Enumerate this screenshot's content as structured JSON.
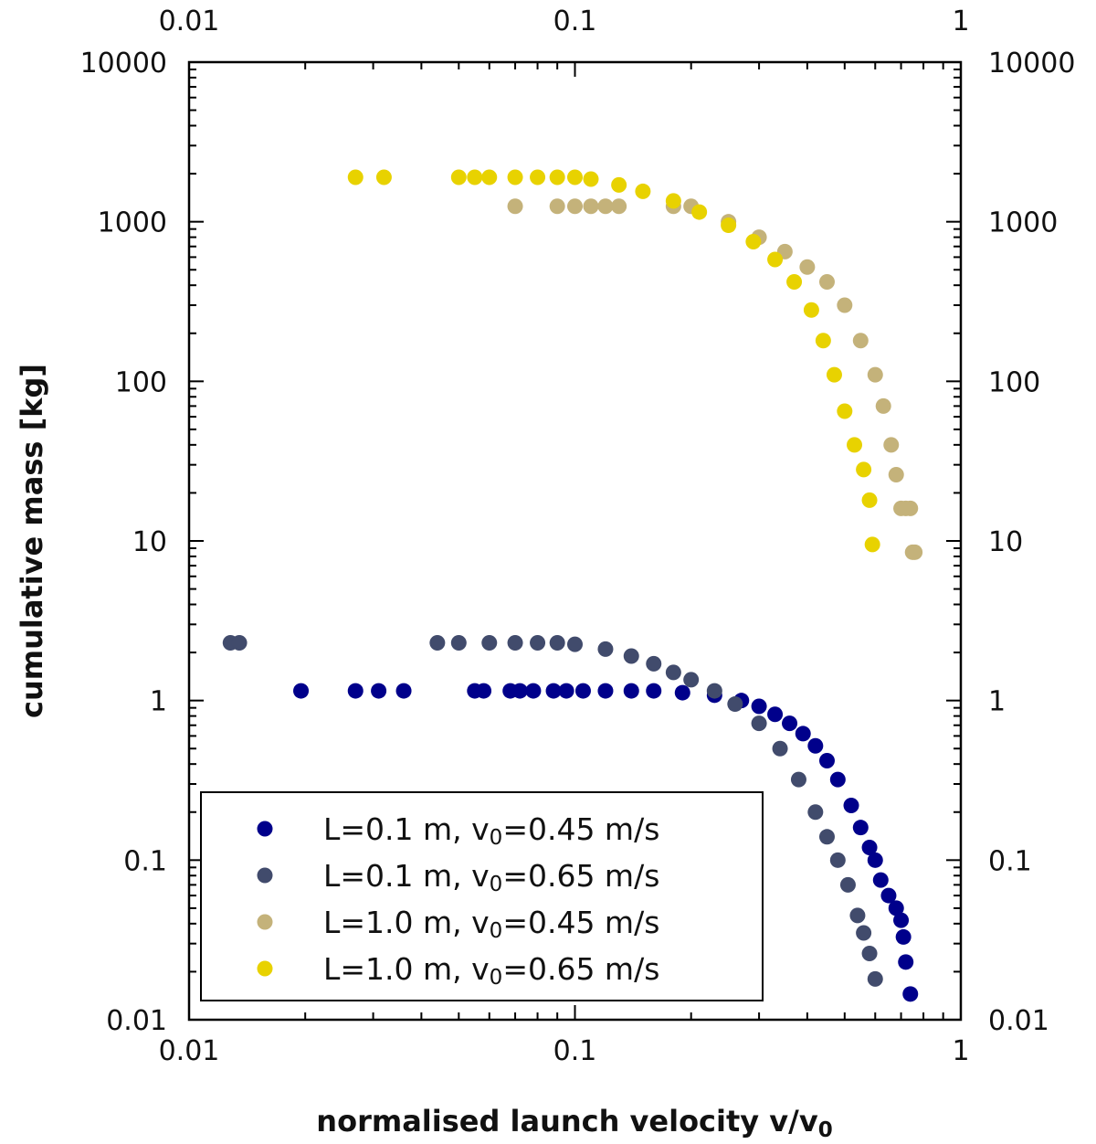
{
  "chart_data": {
    "type": "scatter",
    "title": "",
    "xlabel": "normalised launch velocity v/v",
    "xlabel_sub": "0",
    "ylabel": "cumulative mass [kg]",
    "xscale": "log",
    "yscale": "log",
    "xlim": [
      0.01,
      1
    ],
    "ylim": [
      0.01,
      10000
    ],
    "x_ticks": [
      0.01,
      0.1,
      1
    ],
    "x_tick_labels": [
      "0.01",
      "0.1",
      "1"
    ],
    "y_ticks": [
      0.01,
      0.1,
      1,
      10,
      100,
      1000,
      10000
    ],
    "y_tick_labels": [
      "0.01",
      "0.1",
      "1",
      "10",
      "100",
      "1000",
      "10000"
    ],
    "legend_position": "bottom-left",
    "series": [
      {
        "name": "L=0.1 m, v0=0.45 m/s",
        "label_parts": [
          "L=0.1 m, v",
          "0",
          "=0.45 m/s"
        ],
        "color": "#00008b",
        "points": [
          [
            0.0195,
            1.15
          ],
          [
            0.027,
            1.15
          ],
          [
            0.031,
            1.15
          ],
          [
            0.036,
            1.15
          ],
          [
            0.055,
            1.15
          ],
          [
            0.058,
            1.15
          ],
          [
            0.068,
            1.15
          ],
          [
            0.072,
            1.15
          ],
          [
            0.078,
            1.15
          ],
          [
            0.088,
            1.15
          ],
          [
            0.095,
            1.15
          ],
          [
            0.105,
            1.15
          ],
          [
            0.12,
            1.15
          ],
          [
            0.14,
            1.15
          ],
          [
            0.16,
            1.15
          ],
          [
            0.19,
            1.12
          ],
          [
            0.23,
            1.08
          ],
          [
            0.27,
            1.0
          ],
          [
            0.3,
            0.92
          ],
          [
            0.33,
            0.82
          ],
          [
            0.36,
            0.72
          ],
          [
            0.39,
            0.62
          ],
          [
            0.42,
            0.52
          ],
          [
            0.45,
            0.42
          ],
          [
            0.48,
            0.32
          ],
          [
            0.52,
            0.22
          ],
          [
            0.55,
            0.16
          ],
          [
            0.58,
            0.12
          ],
          [
            0.6,
            0.1
          ],
          [
            0.62,
            0.075
          ],
          [
            0.65,
            0.06
          ],
          [
            0.68,
            0.05
          ],
          [
            0.7,
            0.042
          ],
          [
            0.71,
            0.033
          ],
          [
            0.72,
            0.023
          ],
          [
            0.74,
            0.0145
          ]
        ]
      },
      {
        "name": "L=0.1 m, v0=0.65 m/s",
        "label_parts": [
          "L=0.1 m, v",
          "0",
          "=0.65 m/s"
        ],
        "color": "#414b6c",
        "points": [
          [
            0.0128,
            2.3
          ],
          [
            0.0135,
            2.3
          ],
          [
            0.044,
            2.3
          ],
          [
            0.05,
            2.3
          ],
          [
            0.06,
            2.3
          ],
          [
            0.07,
            2.3
          ],
          [
            0.08,
            2.3
          ],
          [
            0.09,
            2.3
          ],
          [
            0.1,
            2.25
          ],
          [
            0.12,
            2.1
          ],
          [
            0.14,
            1.9
          ],
          [
            0.16,
            1.7
          ],
          [
            0.18,
            1.5
          ],
          [
            0.2,
            1.35
          ],
          [
            0.23,
            1.15
          ],
          [
            0.26,
            0.95
          ],
          [
            0.3,
            0.72
          ],
          [
            0.34,
            0.5
          ],
          [
            0.38,
            0.32
          ],
          [
            0.42,
            0.2
          ],
          [
            0.45,
            0.14
          ],
          [
            0.48,
            0.1
          ],
          [
            0.51,
            0.07
          ],
          [
            0.54,
            0.045
          ],
          [
            0.56,
            0.035
          ],
          [
            0.58,
            0.026
          ],
          [
            0.6,
            0.018
          ]
        ]
      },
      {
        "name": "L=1.0 m, v0=0.45 m/s",
        "label_parts": [
          "L=1.0 m, v",
          "0",
          "=0.45 m/s"
        ],
        "color": "#c4b27a",
        "points": [
          [
            0.07,
            1250
          ],
          [
            0.09,
            1250
          ],
          [
            0.1,
            1250
          ],
          [
            0.11,
            1250
          ],
          [
            0.12,
            1250
          ],
          [
            0.13,
            1250
          ],
          [
            0.18,
            1250
          ],
          [
            0.2,
            1250
          ],
          [
            0.25,
            1000
          ],
          [
            0.3,
            800
          ],
          [
            0.35,
            650
          ],
          [
            0.4,
            520
          ],
          [
            0.45,
            420
          ],
          [
            0.5,
            300
          ],
          [
            0.55,
            180
          ],
          [
            0.6,
            110
          ],
          [
            0.63,
            70
          ],
          [
            0.66,
            40
          ],
          [
            0.68,
            26
          ],
          [
            0.7,
            16
          ],
          [
            0.72,
            16
          ],
          [
            0.74,
            16
          ],
          [
            0.75,
            8.5
          ],
          [
            0.76,
            8.5
          ]
        ]
      },
      {
        "name": "L=1.0 m, v0=0.65 m/s",
        "label_parts": [
          "L=1.0 m, v",
          "0",
          "=0.65 m/s"
        ],
        "color": "#e8d200",
        "points": [
          [
            0.027,
            1900
          ],
          [
            0.032,
            1900
          ],
          [
            0.05,
            1900
          ],
          [
            0.055,
            1900
          ],
          [
            0.06,
            1900
          ],
          [
            0.07,
            1900
          ],
          [
            0.08,
            1900
          ],
          [
            0.09,
            1900
          ],
          [
            0.1,
            1900
          ],
          [
            0.11,
            1850
          ],
          [
            0.13,
            1700
          ],
          [
            0.15,
            1550
          ],
          [
            0.18,
            1350
          ],
          [
            0.21,
            1150
          ],
          [
            0.25,
            950
          ],
          [
            0.29,
            750
          ],
          [
            0.33,
            580
          ],
          [
            0.37,
            420
          ],
          [
            0.41,
            280
          ],
          [
            0.44,
            180
          ],
          [
            0.47,
            110
          ],
          [
            0.5,
            65
          ],
          [
            0.53,
            40
          ],
          [
            0.56,
            28
          ],
          [
            0.58,
            18
          ],
          [
            0.59,
            9.5
          ]
        ]
      }
    ]
  }
}
